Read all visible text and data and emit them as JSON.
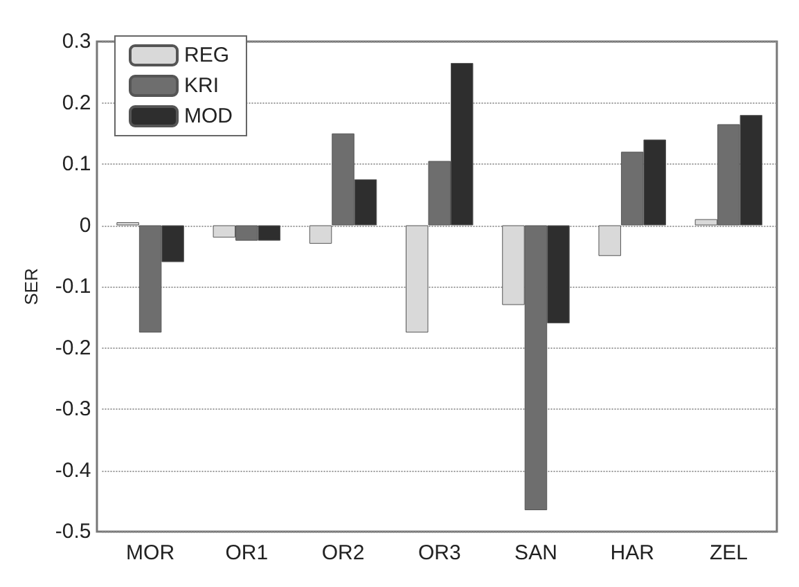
{
  "chart_data": {
    "type": "bar",
    "ylabel": "SER",
    "categories": [
      "MOR",
      "OR1",
      "OR2",
      "OR3",
      "SAN",
      "HAR",
      "ZEL"
    ],
    "series": [
      {
        "name": "REG",
        "color": "#d9d9d9",
        "values": [
          0.005,
          -0.02,
          -0.03,
          -0.175,
          -0.13,
          -0.05,
          0.01
        ]
      },
      {
        "name": "KRI",
        "color": "#6e6e6e",
        "values": [
          -0.175,
          -0.025,
          0.15,
          0.105,
          -0.465,
          0.12,
          0.165
        ]
      },
      {
        "name": "MOD",
        "color": "#2e2e2e",
        "values": [
          -0.06,
          -0.025,
          0.075,
          0.265,
          -0.16,
          0.14,
          0.18
        ]
      }
    ],
    "ylim": [
      -0.5,
      0.3
    ],
    "yticks": [
      -0.5,
      -0.4,
      -0.3,
      -0.2,
      -0.1,
      0,
      0.1,
      0.2,
      0.3
    ],
    "grid": "y",
    "legend": "top left"
  }
}
